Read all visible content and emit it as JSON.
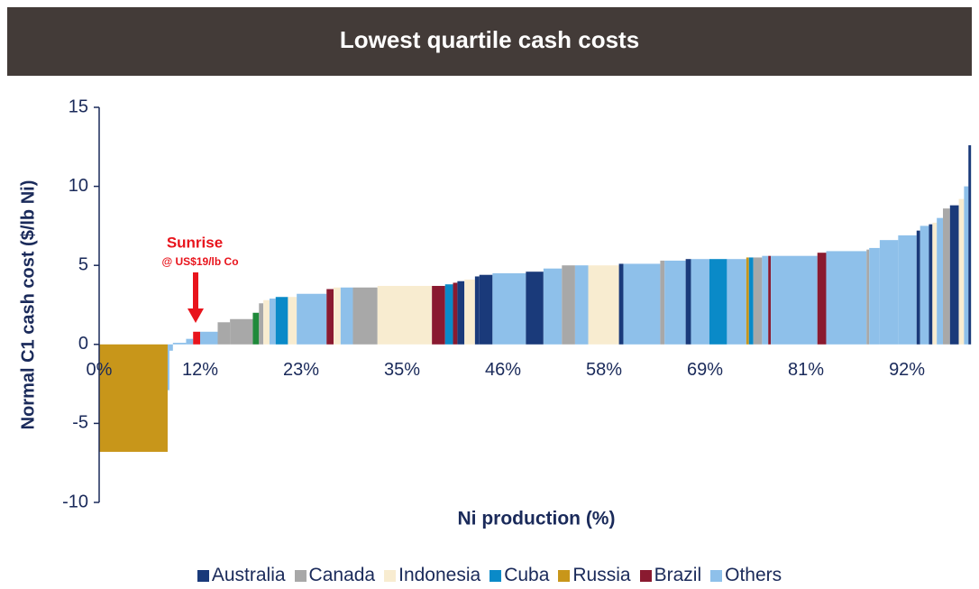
{
  "chart_data": {
    "type": "cost_curve",
    "title": "Lowest quartile cash costs",
    "x_label": "Ni production (%)",
    "y_label": "Normal C1 cash cost ($/lb Ni)",
    "annotation": {
      "title": "Sunrise",
      "subtitle": "@ US$19/lb Co"
    },
    "xlim": [
      0,
      100
    ],
    "xticks": [
      {
        "value": 0,
        "label": "0%"
      },
      {
        "value": 11.5,
        "label": "12%"
      },
      {
        "value": 23,
        "label": "23%"
      },
      {
        "value": 34.5,
        "label": "35%"
      },
      {
        "value": 46,
        "label": "46%"
      },
      {
        "value": 57.5,
        "label": "58%"
      },
      {
        "value": 69,
        "label": "69%"
      },
      {
        "value": 80.5,
        "label": "81%"
      },
      {
        "value": 92,
        "label": "92%"
      }
    ],
    "ylim": [
      -10,
      15
    ],
    "yticks": [
      -10,
      -5,
      0,
      5,
      10,
      15
    ],
    "series": [
      {
        "name": "Australia",
        "color": "#1a3a7a"
      },
      {
        "name": "Canada",
        "color": "#a8a8a8"
      },
      {
        "name": "Indonesia",
        "color": "#f8ecd0"
      },
      {
        "name": "Cuba",
        "color": "#0a8ac8"
      },
      {
        "name": "Russia",
        "color": "#c8961a"
      },
      {
        "name": "Brazil",
        "color": "#8a1a30"
      },
      {
        "name": "Others",
        "color": "#8ec0ea"
      }
    ],
    "widths": [
      7.8,
      0.2,
      0.4,
      1.5,
      0.8,
      0.8,
      2.0,
      1.4,
      2.6,
      0.7,
      0.5,
      0.7,
      0.7,
      1.4,
      1.0,
      3.4,
      0.8,
      0.8,
      1.4,
      2.8,
      6.2,
      1.5,
      0.9,
      0.5,
      0.8,
      1.2,
      0.5,
      1.5,
      3.8,
      2.0,
      2.1,
      1.5,
      1.5,
      3.5,
      0.5,
      4.2,
      0.5,
      2.4,
      0.6,
      2.1,
      2.0,
      2.2,
      0.3,
      0.5,
      1.0,
      0.7,
      0.3,
      5.3,
      1.0,
      4.6,
      0.3,
      1.2,
      2.1,
      2.1,
      0.4,
      1.0,
      0.4,
      0.5,
      0.7,
      0.8,
      1.0,
      0.6,
      0.5,
      0.3
    ],
    "values": [
      -6.8,
      -2.9,
      -0.4,
      0.1,
      0.35,
      0.8,
      0.8,
      1.4,
      1.6,
      2.0,
      2.6,
      2.8,
      2.9,
      3.0,
      3.0,
      3.2,
      3.5,
      3.6,
      3.6,
      3.6,
      3.7,
      3.7,
      3.8,
      3.9,
      4.0,
      4.1,
      4.3,
      4.4,
      4.5,
      4.6,
      4.8,
      5.0,
      5.0,
      5.0,
      5.1,
      5.1,
      5.3,
      5.3,
      5.4,
      5.4,
      5.4,
      5.4,
      5.5,
      5.5,
      5.5,
      5.6,
      5.6,
      5.6,
      5.8,
      5.9,
      6.0,
      6.1,
      6.6,
      6.9,
      7.2,
      7.5,
      7.6,
      7.7,
      8.0,
      8.6,
      8.8,
      9.2,
      10.0,
      12.6
    ],
    "bar_colors": [
      "#c8961a",
      "#8ec0ea",
      "#8ec0ea",
      "#8ec0ea",
      "#8ec0ea",
      "#e8141c",
      "#8ec0ea",
      "#a8a8a8",
      "#a8a8a8",
      "#1f8a3a",
      "#a8a8a8",
      "#f8ecd0",
      "#8ec0ea",
      "#0a8ac8",
      "#f8ecd0",
      "#8ec0ea",
      "#8a1a30",
      "#f8ecd0",
      "#8ec0ea",
      "#a8a8a8",
      "#f8ecd0",
      "#8a1a30",
      "#0a8ac8",
      "#8a1a30",
      "#1a3a7a",
      "#f8ecd0",
      "#1a3a7a",
      "#1a3a7a",
      "#8ec0ea",
      "#1a3a7a",
      "#8ec0ea",
      "#a8a8a8",
      "#8ec0ea",
      "#f8ecd0",
      "#1a3a7a",
      "#8ec0ea",
      "#a8a8a8",
      "#8ec0ea",
      "#1a3a7a",
      "#8ec0ea",
      "#0a8ac8",
      "#8ec0ea",
      "#c8961a",
      "#0a8ac8",
      "#a8a8a8",
      "#8ec0ea",
      "#8a1a30",
      "#8ec0ea",
      "#8a1a30",
      "#8ec0ea",
      "#a8a8a8",
      "#8ec0ea",
      "#8ec0ea",
      "#8ec0ea",
      "#1a3a7a",
      "#8ec0ea",
      "#1a3a7a",
      "#f8ecd0",
      "#8ec0ea",
      "#a8a8a8",
      "#1a3a7a",
      "#f8ecd0",
      "#8ec0ea",
      "#1a3a7a"
    ],
    "legend": "bottom"
  }
}
